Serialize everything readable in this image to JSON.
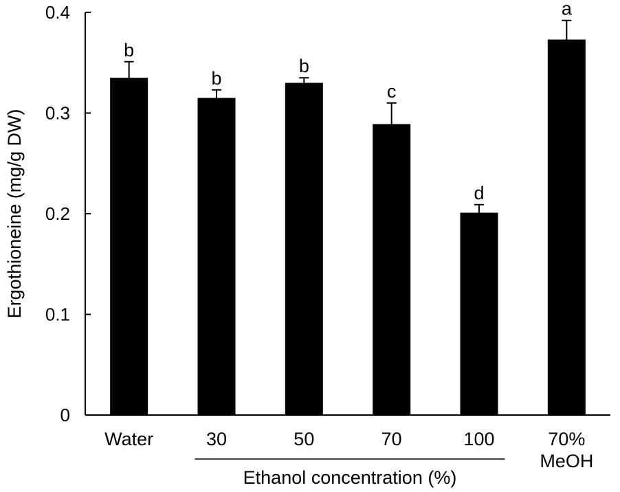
{
  "chart_data": {
    "type": "bar",
    "categories": [
      [
        "Water"
      ],
      [
        "30"
      ],
      [
        "50"
      ],
      [
        "70"
      ],
      [
        "100"
      ],
      [
        "70%",
        "MeOH"
      ]
    ],
    "values": [
      0.335,
      0.315,
      0.33,
      0.289,
      0.201,
      0.373
    ],
    "errors": [
      0.016,
      0.008,
      0.005,
      0.021,
      0.008,
      0.019
    ],
    "significance_letters": [
      "b",
      "b",
      "b",
      "c",
      "d",
      "a"
    ],
    "ylabel": "Ergothioneine (mg/g DW)",
    "group_label": "Ethanol concentration (%)",
    "group_categories": [
      1,
      4
    ],
    "ylim": [
      0,
      0.4
    ],
    "yticks": [
      "0",
      "0.1",
      "0.2",
      "0.3",
      "0.4"
    ],
    "ytick_values": [
      0,
      0.1,
      0.2,
      0.3,
      0.4
    ],
    "bar_color": "#000000",
    "grid": false,
    "legend": "none"
  }
}
